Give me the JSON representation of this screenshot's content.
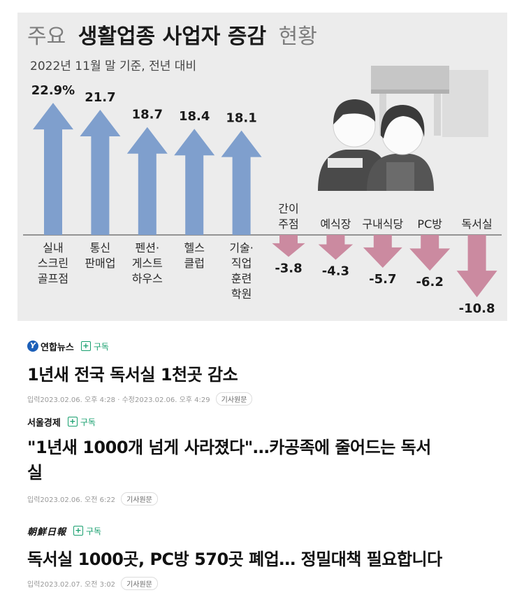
{
  "chart_data": {
    "type": "bar",
    "title_light_prefix": "주요",
    "title_bold": "생활업종 사업자 증감",
    "title_light_suffix": "현황",
    "subtitle": "2022년 11월 말 기준, 전년 대비",
    "categories": [
      [
        "실내",
        "스크린",
        "골프점"
      ],
      [
        "통신",
        "판매업"
      ],
      [
        "펜션·",
        "게스트",
        "하우스"
      ],
      [
        "헬스",
        "클럽"
      ],
      [
        "기술·",
        "직업",
        "훈련",
        "학원"
      ],
      [
        "간이",
        "주점"
      ],
      [
        "예식장"
      ],
      [
        "구내식당"
      ],
      [
        "PC방"
      ],
      [
        "독서실"
      ]
    ],
    "values": [
      22.9,
      21.7,
      18.7,
      18.4,
      18.1,
      -3.8,
      -4.3,
      -5.7,
      -6.2,
      -10.8
    ],
    "value_labels": [
      "22.9%",
      "21.7",
      "18.7",
      "18.4",
      "18.1",
      "-3.8",
      "-4.3",
      "-5.7",
      "-6.2",
      "-10.8"
    ],
    "colors": {
      "positive": "#7f9fcd",
      "negative": "#cb8aa0",
      "baseline": "#777777"
    }
  },
  "news": [
    {
      "source": "연합뉴스",
      "logo_mark": "Y",
      "subscribe": "구독",
      "headline_lines": [
        "1년새 전국 독서실 1천곳 감소"
      ],
      "meta": "입력2023.02.06. 오후 4:28 · 수정2023.02.06. 오후 4:29",
      "original_label": "기사원문"
    },
    {
      "source": "서울경제",
      "subscribe": "구독",
      "headline_lines": [
        "\"1년새 1000개 넘게 사라졌다\"…카공족에 줄어드는 독서",
        "실"
      ],
      "meta": "입력2023.02.06. 오전 6:22",
      "original_label": "기사원문"
    },
    {
      "source": "朝鮮日報",
      "subscribe": "구독",
      "headline_lines": [
        "독서실 1000곳, PC방 570곳 폐업… 정밀대책 필요합니다"
      ],
      "meta": "입력2023.02.07. 오전 3:02",
      "original_label": "기사원문"
    }
  ]
}
